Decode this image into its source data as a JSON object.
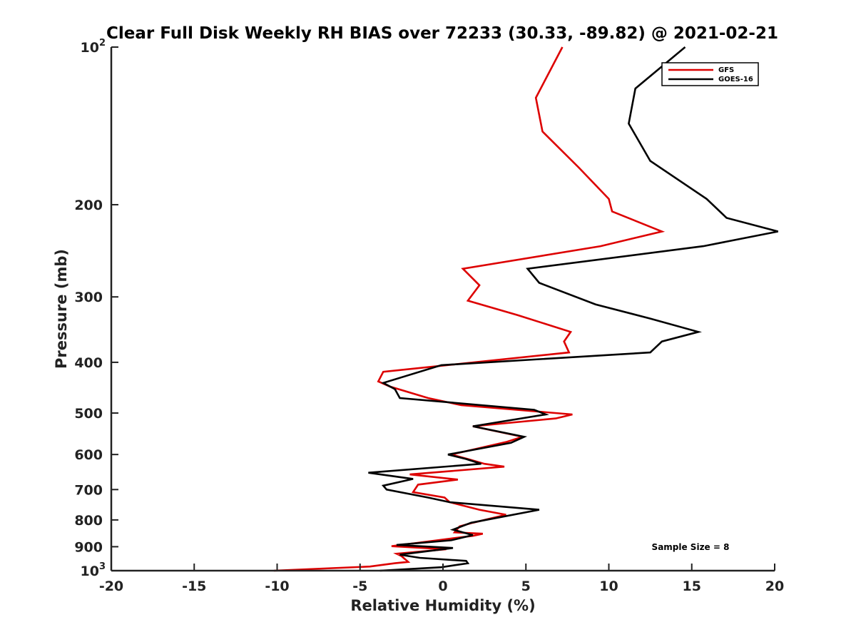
{
  "chart_data": {
    "type": "line",
    "title": "Clear Full Disk Weekly RH BIAS over 72233 (30.33, -89.82) @ 2021-02-21",
    "xlabel": "Relative Humidity (%)",
    "ylabel": "Pressure (mb)",
    "xlim": [
      -20,
      20
    ],
    "ylim": [
      100,
      1000
    ],
    "yscale": "log",
    "y_reversed": true,
    "x_ticks": [
      -20,
      -15,
      -10,
      -5,
      0,
      5,
      10,
      15,
      20
    ],
    "x_tick_labels": [
      "-20",
      "-15",
      "-10",
      "-5",
      "0",
      "5",
      "10",
      "15",
      "20"
    ],
    "y_ticks": [
      100,
      200,
      300,
      400,
      500,
      600,
      700,
      800,
      900,
      1000
    ],
    "y_tick_labels": [
      {
        "base": "10",
        "exp": "2"
      },
      {
        "base": "200",
        "exp": ""
      },
      {
        "base": "300",
        "exp": ""
      },
      {
        "base": "400",
        "exp": ""
      },
      {
        "base": "500",
        "exp": ""
      },
      {
        "base": "600",
        "exp": ""
      },
      {
        "base": "700",
        "exp": ""
      },
      {
        "base": "800",
        "exp": ""
      },
      {
        "base": "900",
        "exp": ""
      },
      {
        "base": "10",
        "exp": "3"
      }
    ],
    "legend_position": "top-right",
    "annotation": "Sample Size = 8",
    "series": [
      {
        "name": "GFS",
        "color": "#dd0000",
        "points": [
          [
            7.2,
            100
          ],
          [
            5.6,
            125
          ],
          [
            6.0,
            145
          ],
          [
            8.2,
            170
          ],
          [
            10.0,
            195
          ],
          [
            10.2,
            206
          ],
          [
            13.2,
            225
          ],
          [
            9.5,
            240
          ],
          [
            1.2,
            265
          ],
          [
            2.2,
            285
          ],
          [
            1.5,
            305
          ],
          [
            4.5,
            325
          ],
          [
            7.7,
            350
          ],
          [
            7.3,
            365
          ],
          [
            7.6,
            383
          ],
          [
            -3.6,
            417
          ],
          [
            -3.9,
            435
          ],
          [
            -3.2,
            445
          ],
          [
            -0.9,
            468
          ],
          [
            1.1,
            483
          ],
          [
            7.8,
            503
          ],
          [
            6.8,
            512
          ],
          [
            1.8,
            530
          ],
          [
            4.8,
            555
          ],
          [
            3.8,
            568
          ],
          [
            0.5,
            600
          ],
          [
            1.5,
            612
          ],
          [
            2.5,
            625
          ],
          [
            3.7,
            633
          ],
          [
            -2.0,
            655
          ],
          [
            0.9,
            670
          ],
          [
            -1.5,
            685
          ],
          [
            -1.8,
            708
          ],
          [
            0.1,
            725
          ],
          [
            0.4,
            740
          ],
          [
            2.2,
            765
          ],
          [
            3.8,
            782
          ],
          [
            1.8,
            810
          ],
          [
            1.0,
            823
          ],
          [
            0.7,
            845
          ],
          [
            2.4,
            850
          ],
          [
            1.8,
            858
          ],
          [
            0.5,
            868
          ],
          [
            -3.1,
            898
          ],
          [
            0.2,
            910
          ],
          [
            -2.8,
            928
          ],
          [
            -2.5,
            938
          ],
          [
            -2.1,
            962
          ],
          [
            -2.9,
            968
          ],
          [
            -4.4,
            982
          ],
          [
            -10.2,
            1000
          ]
        ]
      },
      {
        "name": "GOES-16",
        "color": "#000000",
        "points": [
          [
            14.6,
            100
          ],
          [
            11.6,
            120
          ],
          [
            11.2,
            140
          ],
          [
            12.5,
            165
          ],
          [
            15.9,
            195
          ],
          [
            17.1,
            212
          ],
          [
            20.2,
            225
          ],
          [
            15.7,
            240
          ],
          [
            5.1,
            265
          ],
          [
            5.8,
            282
          ],
          [
            9.2,
            310
          ],
          [
            12.5,
            330
          ],
          [
            15.4,
            350
          ],
          [
            13.2,
            365
          ],
          [
            12.5,
            383
          ],
          [
            -0.1,
            405
          ],
          [
            -3.6,
            438
          ],
          [
            -2.9,
            450
          ],
          [
            -2.6,
            468
          ],
          [
            5.5,
            493
          ],
          [
            6.2,
            503
          ],
          [
            1.8,
            530
          ],
          [
            4.9,
            555
          ],
          [
            4.1,
            570
          ],
          [
            0.3,
            600
          ],
          [
            1.4,
            612
          ],
          [
            2.3,
            625
          ],
          [
            -4.5,
            650
          ],
          [
            -1.8,
            668
          ],
          [
            -3.6,
            688
          ],
          [
            -3.4,
            700
          ],
          [
            -0.9,
            725
          ],
          [
            0.4,
            740
          ],
          [
            5.8,
            765
          ],
          [
            1.7,
            810
          ],
          [
            0.6,
            835
          ],
          [
            1.8,
            855
          ],
          [
            0.5,
            875
          ],
          [
            -2.8,
            893
          ],
          [
            0.6,
            905
          ],
          [
            -2.6,
            932
          ],
          [
            -1.4,
            945
          ],
          [
            1.4,
            958
          ],
          [
            1.5,
            968
          ],
          [
            -0.1,
            985
          ],
          [
            -3.8,
            1000
          ]
        ]
      }
    ]
  }
}
